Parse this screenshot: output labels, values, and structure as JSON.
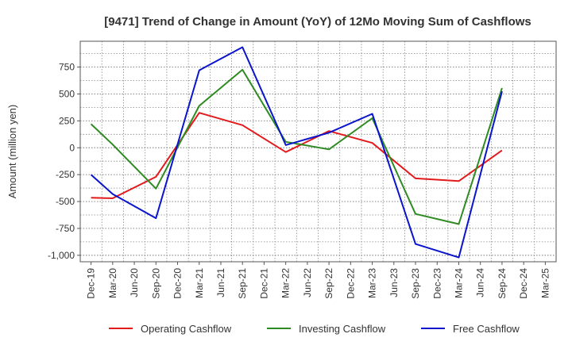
{
  "chart_data": {
    "type": "line",
    "title": "[9471]  Trend of Change in Amount (YoY) of 12Mo Moving Sum of Cashflows",
    "xlabel": "",
    "ylabel": "Amount (million yen)",
    "ylim": [
      -1060,
      990
    ],
    "yticks": [
      750,
      500,
      250,
      0,
      -250,
      -500,
      -750,
      -1000
    ],
    "ytick_labels": [
      "750",
      "500",
      "250",
      "0",
      "-250",
      "-500",
      "-750",
      "-1,000"
    ],
    "categories": [
      "Dec-19",
      "Mar-20",
      "Jun-20",
      "Sep-20",
      "Dec-20",
      "Mar-21",
      "Jun-21",
      "Sep-21",
      "Dec-21",
      "Mar-22",
      "Jun-22",
      "Sep-22",
      "Dec-22",
      "Mar-23",
      "Jun-23",
      "Sep-23",
      "Dec-23",
      "Mar-24",
      "Jun-24",
      "Sep-24",
      "Dec-24",
      "Mar-25"
    ],
    "grid": true,
    "legend_position": "bottom",
    "series": [
      {
        "name": "Operating Cashflow",
        "color": "#e31a1c",
        "values": [
          -465,
          -470,
          null,
          -270,
          null,
          325,
          null,
          210,
          null,
          -40,
          null,
          155,
          null,
          45,
          null,
          -285,
          null,
          -310,
          null,
          -25,
          null,
          null
        ]
      },
      {
        "name": "Investing Cashflow",
        "color": "#2e8b22",
        "values": [
          220,
          30,
          null,
          -380,
          null,
          390,
          null,
          725,
          null,
          55,
          null,
          -15,
          null,
          275,
          null,
          -615,
          null,
          -710,
          null,
          555,
          null,
          null
        ]
      },
      {
        "name": "Free Cashflow",
        "color": "#0a14cc",
        "values": [
          -250,
          -430,
          null,
          -655,
          null,
          720,
          null,
          935,
          null,
          25,
          null,
          140,
          null,
          315,
          null,
          -895,
          null,
          -1020,
          null,
          525,
          null,
          null
        ]
      }
    ]
  }
}
